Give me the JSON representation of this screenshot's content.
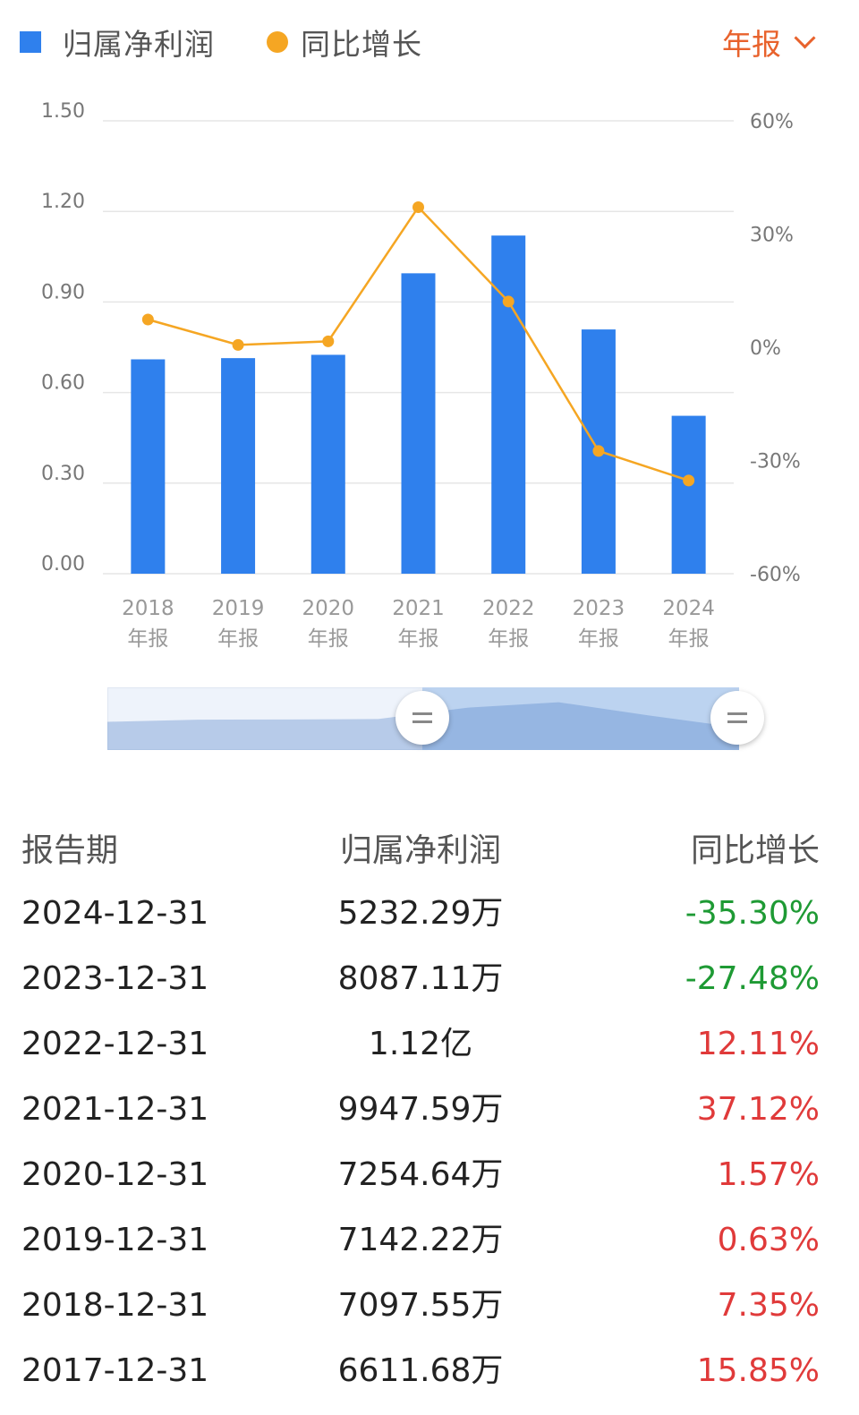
{
  "legend": {
    "bar_label": "归属净利润",
    "line_label": "同比增长",
    "bar_color": "#2f80ed",
    "line_color": "#f5a623"
  },
  "period_selector": {
    "label": "年报"
  },
  "chart_data": {
    "type": "bar",
    "categories": [
      "2018年报",
      "2019年报",
      "2020年报",
      "2021年报",
      "2022年报",
      "2023年报",
      "2024年报"
    ],
    "x_tick_years": [
      "2018",
      "2019",
      "2020",
      "2021",
      "2022",
      "2023",
      "2024"
    ],
    "x_tick_suffix": "年报",
    "series": [
      {
        "name": "归属净利润",
        "type": "bar",
        "axis": "left",
        "values": [
          0.71,
          0.714,
          0.725,
          0.995,
          1.12,
          0.809,
          0.523
        ]
      },
      {
        "name": "同比增长",
        "type": "line",
        "axis": "right",
        "values": [
          7.35,
          0.63,
          1.57,
          37.12,
          12.11,
          -27.48,
          -35.3
        ]
      }
    ],
    "y_left": {
      "ticks": [
        "0.00",
        "0.30",
        "0.60",
        "0.90",
        "1.20",
        "1.50"
      ],
      "range": [
        0,
        1.5
      ]
    },
    "y_right": {
      "ticks": [
        "-60%",
        "-30%",
        "0%",
        "30%",
        "60%"
      ],
      "range": [
        -60,
        60
      ]
    },
    "grid": true,
    "legend_position": "top-left"
  },
  "slider": {
    "overview_values": [
      0.6611,
      0.7098,
      0.7142,
      0.7255,
      0.9948,
      1.12,
      0.8087,
      0.5232
    ]
  },
  "table": {
    "headers": {
      "period": "报告期",
      "profit": "归属净利润",
      "growth": "同比增长"
    },
    "rows": [
      {
        "period": "2024-12-31",
        "profit": "5232.29万",
        "growth": "-35.30%",
        "trend": "neg"
      },
      {
        "period": "2023-12-31",
        "profit": "8087.11万",
        "growth": "-27.48%",
        "trend": "neg"
      },
      {
        "period": "2022-12-31",
        "profit": "1.12亿",
        "growth": "12.11%",
        "trend": "pos"
      },
      {
        "period": "2021-12-31",
        "profit": "9947.59万",
        "growth": "37.12%",
        "trend": "pos"
      },
      {
        "period": "2020-12-31",
        "profit": "7254.64万",
        "growth": "1.57%",
        "trend": "pos"
      },
      {
        "period": "2019-12-31",
        "profit": "7142.22万",
        "growth": "0.63%",
        "trend": "pos"
      },
      {
        "period": "2018-12-31",
        "profit": "7097.55万",
        "growth": "7.35%",
        "trend": "pos"
      },
      {
        "period": "2017-12-31",
        "profit": "6611.68万",
        "growth": "15.85%",
        "trend": "pos"
      }
    ]
  }
}
